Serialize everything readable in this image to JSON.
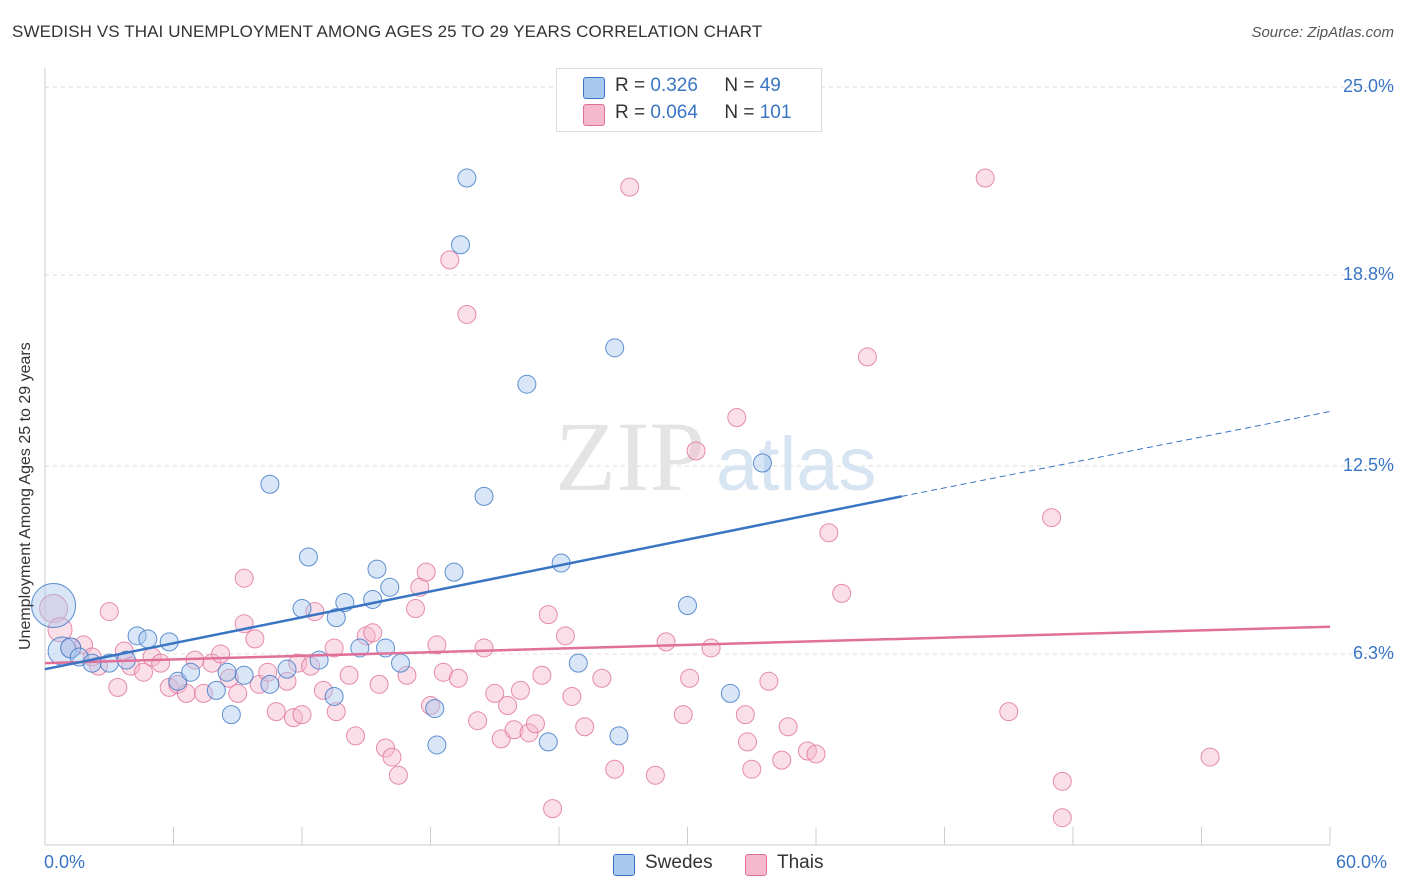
{
  "title": "SWEDISH VS THAI UNEMPLOYMENT AMONG AGES 25 TO 29 YEARS CORRELATION CHART",
  "source": "Source: ZipAtlas.com",
  "watermark": {
    "zip": "ZIP",
    "atlas": "atlas"
  },
  "colors": {
    "blue": "#3a75c4",
    "blue_fill": "#a8c8f0",
    "pink": "#e0709a",
    "pink_fill": "#f5b8cc",
    "grid": "#dddddd"
  },
  "legend": {
    "rows": [
      {
        "r_label": "R =",
        "r_value": "0.326",
        "n_label": "N =",
        "n_value": "49"
      },
      {
        "r_label": "R =",
        "r_value": "0.064",
        "n_label": "N =",
        "n_value": "101"
      }
    ],
    "series": [
      "Swedes",
      "Thais"
    ]
  },
  "chart_data": {
    "type": "scatter",
    "title": "SWEDISH VS THAI UNEMPLOYMENT AMONG AGES 25 TO 29 YEARS CORRELATION CHART",
    "xlabel": "",
    "ylabel": "Unemployment Among Ages 25 to 29 years",
    "xlim": [
      0,
      60
    ],
    "ylim": [
      0,
      25.3
    ],
    "x_tick_labels": [
      "0.0%",
      "60.0%"
    ],
    "y_ticks": [
      6.3,
      12.5,
      18.8,
      25.0
    ],
    "y_tick_labels": [
      "6.3%",
      "12.5%",
      "18.8%",
      "25.0%"
    ],
    "grid": true,
    "legend_placement": "top-center",
    "series": [
      {
        "name": "Swedes",
        "color": "#3a75c4",
        "r": 0.326,
        "n": 49,
        "trend": {
          "x0": 0,
          "y0": 5.8,
          "x1": 40,
          "y1": 11.5,
          "dashed_to_x": 60,
          "dashed_to_y": 14.3
        },
        "points": [
          [
            0.4,
            7.9,
            22
          ],
          [
            0.8,
            6.4,
            14
          ],
          [
            1.2,
            6.5,
            10
          ],
          [
            1.6,
            6.2,
            9
          ],
          [
            2.2,
            6.0,
            9
          ],
          [
            3.0,
            6.0,
            9
          ],
          [
            3.8,
            6.1,
            9
          ],
          [
            4.3,
            6.9,
            9
          ],
          [
            4.8,
            6.8,
            9
          ],
          [
            5.8,
            6.7,
            9
          ],
          [
            6.2,
            5.4,
            9
          ],
          [
            6.8,
            5.7,
            9
          ],
          [
            8.0,
            5.1,
            9
          ],
          [
            8.5,
            5.7,
            9
          ],
          [
            8.7,
            4.3,
            9
          ],
          [
            9.3,
            5.6,
            9
          ],
          [
            10.5,
            5.3,
            9
          ],
          [
            10.5,
            11.9,
            9
          ],
          [
            11.3,
            5.8,
            9
          ],
          [
            12.0,
            7.8,
            9
          ],
          [
            12.3,
            9.5,
            9
          ],
          [
            12.8,
            6.1,
            9
          ],
          [
            13.6,
            7.5,
            9
          ],
          [
            13.5,
            4.9,
            9
          ],
          [
            14.0,
            8.0,
            9
          ],
          [
            14.7,
            6.5,
            9
          ],
          [
            15.3,
            8.1,
            9
          ],
          [
            15.5,
            9.1,
            9
          ],
          [
            16.1,
            8.5,
            9
          ],
          [
            15.9,
            6.5,
            9
          ],
          [
            16.6,
            6.0,
            9
          ],
          [
            18.3,
            3.3,
            9
          ],
          [
            18.2,
            4.5,
            9
          ],
          [
            19.1,
            9.0,
            9
          ],
          [
            19.4,
            19.8,
            9
          ],
          [
            19.7,
            22.0,
            9
          ],
          [
            20.5,
            11.5,
            9
          ],
          [
            22.5,
            15.2,
            9
          ],
          [
            23.5,
            3.4,
            9
          ],
          [
            24.1,
            9.3,
            9
          ],
          [
            24.9,
            6.0,
            9
          ],
          [
            26.8,
            3.6,
            9
          ],
          [
            26.6,
            16.4,
            9
          ],
          [
            30.0,
            7.9,
            9
          ],
          [
            32.0,
            5.0,
            9
          ],
          [
            33.5,
            12.6,
            9
          ]
        ]
      },
      {
        "name": "Thais",
        "color": "#e0709a",
        "r": 0.064,
        "n": 101,
        "trend": {
          "x0": 0,
          "y0": 6.0,
          "x1": 60,
          "y1": 7.2
        },
        "points": [
          [
            0.4,
            7.8,
            14
          ],
          [
            0.7,
            7.1,
            12
          ],
          [
            1.2,
            6.5,
            10
          ],
          [
            1.8,
            6.6,
            9
          ],
          [
            2.2,
            6.2,
            9
          ],
          [
            2.5,
            5.9,
            9
          ],
          [
            3.0,
            7.7,
            9
          ],
          [
            3.4,
            5.2,
            9
          ],
          [
            3.7,
            6.4,
            9
          ],
          [
            4.0,
            5.9,
            9
          ],
          [
            4.6,
            5.7,
            9
          ],
          [
            5.0,
            6.2,
            9
          ],
          [
            5.4,
            6.0,
            9
          ],
          [
            5.8,
            5.2,
            9
          ],
          [
            6.2,
            5.3,
            9
          ],
          [
            6.6,
            5.0,
            9
          ],
          [
            7.0,
            6.1,
            9
          ],
          [
            7.4,
            5.0,
            9
          ],
          [
            7.8,
            6.0,
            9
          ],
          [
            8.2,
            6.3,
            9
          ],
          [
            8.6,
            5.5,
            9
          ],
          [
            9.0,
            5.0,
            9
          ],
          [
            9.3,
            7.3,
            9
          ],
          [
            9.3,
            8.8,
            9
          ],
          [
            9.8,
            6.8,
            9
          ],
          [
            10.0,
            5.3,
            9
          ],
          [
            10.4,
            5.7,
            9
          ],
          [
            10.8,
            4.4,
            9
          ],
          [
            11.3,
            5.4,
            9
          ],
          [
            11.6,
            4.2,
            9
          ],
          [
            11.8,
            6.0,
            9
          ],
          [
            12.0,
            4.3,
            9
          ],
          [
            12.4,
            5.9,
            9
          ],
          [
            12.6,
            7.7,
            9
          ],
          [
            13.0,
            5.1,
            9
          ],
          [
            13.5,
            6.5,
            9
          ],
          [
            13.6,
            4.4,
            9
          ],
          [
            14.2,
            5.6,
            9
          ],
          [
            14.5,
            3.6,
            9
          ],
          [
            15.0,
            6.9,
            9
          ],
          [
            15.3,
            7.0,
            9
          ],
          [
            15.6,
            5.3,
            9
          ],
          [
            15.9,
            3.2,
            9
          ],
          [
            16.2,
            2.9,
            9
          ],
          [
            16.5,
            2.3,
            9
          ],
          [
            16.9,
            5.6,
            9
          ],
          [
            17.3,
            7.8,
            9
          ],
          [
            17.5,
            8.5,
            9
          ],
          [
            17.8,
            9.0,
            9
          ],
          [
            18.0,
            4.6,
            9
          ],
          [
            18.3,
            6.6,
            9
          ],
          [
            18.6,
            5.7,
            9
          ],
          [
            18.9,
            19.3,
            9
          ],
          [
            19.3,
            5.5,
            9
          ],
          [
            19.7,
            17.5,
            9
          ],
          [
            20.2,
            4.1,
            9
          ],
          [
            20.5,
            6.5,
            9
          ],
          [
            21.0,
            5.0,
            9
          ],
          [
            21.3,
            3.5,
            9
          ],
          [
            21.6,
            4.6,
            9
          ],
          [
            21.9,
            3.8,
            9
          ],
          [
            22.2,
            5.1,
            9
          ],
          [
            22.6,
            3.7,
            9
          ],
          [
            22.9,
            4.0,
            9
          ],
          [
            23.2,
            5.6,
            9
          ],
          [
            23.5,
            7.6,
            9
          ],
          [
            23.7,
            1.2,
            9
          ],
          [
            24.3,
            6.9,
            9
          ],
          [
            24.6,
            4.9,
            9
          ],
          [
            25.2,
            3.9,
            9
          ],
          [
            26.0,
            5.5,
            9
          ],
          [
            26.6,
            2.5,
            9
          ],
          [
            27.3,
            21.7,
            9
          ],
          [
            28.5,
            2.3,
            9
          ],
          [
            29.0,
            6.7,
            9
          ],
          [
            29.8,
            4.3,
            9
          ],
          [
            30.1,
            5.5,
            9
          ],
          [
            30.4,
            13.0,
            9
          ],
          [
            31.1,
            6.5,
            9
          ],
          [
            32.3,
            14.1,
            9
          ],
          [
            32.7,
            4.3,
            9
          ],
          [
            32.8,
            3.4,
            9
          ],
          [
            33.0,
            2.5,
            9
          ],
          [
            33.8,
            5.4,
            9
          ],
          [
            34.4,
            2.8,
            9
          ],
          [
            34.7,
            3.9,
            9
          ],
          [
            35.6,
            3.1,
            9
          ],
          [
            36.0,
            3.0,
            9
          ],
          [
            36.6,
            10.3,
            9
          ],
          [
            37.2,
            8.3,
            9
          ],
          [
            38.4,
            16.1,
            9
          ],
          [
            43.9,
            22.0,
            9
          ],
          [
            45.0,
            4.4,
            9
          ],
          [
            47.0,
            10.8,
            9
          ],
          [
            47.5,
            2.1,
            9
          ],
          [
            47.5,
            0.9,
            9
          ],
          [
            54.4,
            2.9,
            9
          ]
        ]
      }
    ]
  }
}
